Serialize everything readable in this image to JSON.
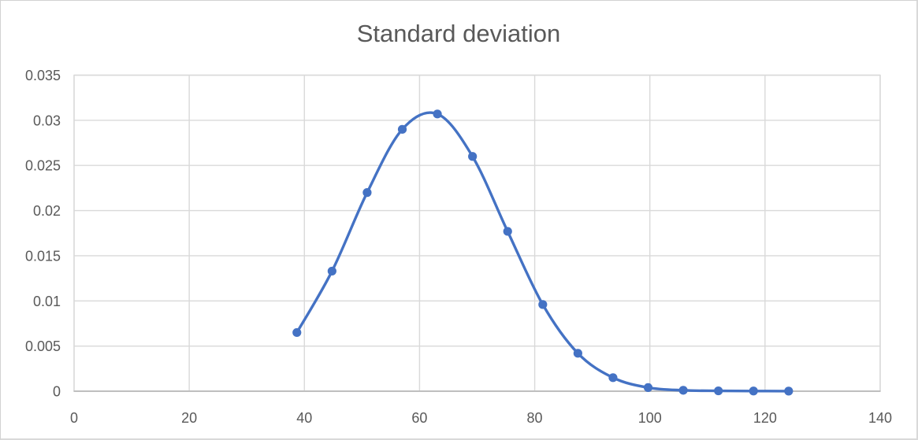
{
  "title": "Standard deviation",
  "colors": {
    "series": "#4472C4",
    "gridline": "#D9D9D9",
    "axis_line": "#BFBFBF",
    "text": "#595959",
    "frame_border": "#D2D2D2",
    "background": "#FFFFFF"
  },
  "chart_data": {
    "type": "line",
    "title": "Standard deviation",
    "smooth": true,
    "marker": "circle",
    "series_color": "#4472C4",
    "legend": "none",
    "grid": true,
    "x": [
      38.7,
      44.8,
      50.9,
      57.0,
      63.1,
      69.2,
      75.3,
      81.4,
      87.5,
      93.6,
      99.7,
      105.8,
      111.9,
      118.0,
      124.1
    ],
    "y": [
      0.0065,
      0.0133,
      0.022,
      0.029,
      0.0307,
      0.026,
      0.0177,
      0.0096,
      0.0042,
      0.0015,
      0.0004,
      0.0001,
      4e-05,
      2e-05,
      1e-05
    ],
    "xlim": [
      0,
      140
    ],
    "ylim": [
      0,
      0.035
    ],
    "x_tick_labels": [
      "0",
      "20",
      "40",
      "60",
      "80",
      "100",
      "120",
      "140"
    ],
    "y_tick_labels": [
      "0",
      "0.005",
      "0.01",
      "0.015",
      "0.02",
      "0.025",
      "0.03",
      "0.035"
    ]
  }
}
